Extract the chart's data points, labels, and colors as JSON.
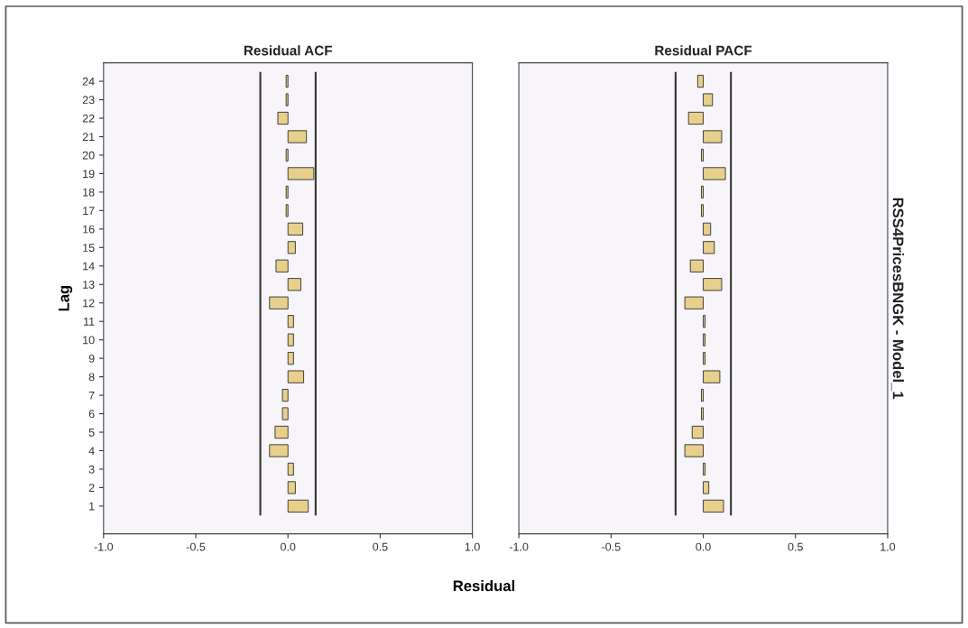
{
  "chart_data": [
    {
      "type": "bar",
      "orientation": "horizontal",
      "title": "Residual ACF",
      "xlabel": "Residual",
      "ylabel": "Lag",
      "categories": [
        "24",
        "23",
        "22",
        "21",
        "20",
        "19",
        "18",
        "17",
        "16",
        "15",
        "14",
        "13",
        "12",
        "11",
        "10",
        "9",
        "8",
        "7",
        "6",
        "5",
        "4",
        "3",
        "2",
        "1"
      ],
      "values": [
        -0.01,
        -0.01,
        -0.055,
        0.1,
        -0.01,
        0.14,
        -0.01,
        -0.01,
        0.08,
        0.04,
        -0.065,
        0.07,
        -0.1,
        0.03,
        0.03,
        0.03,
        0.085,
        -0.03,
        -0.03,
        -0.07,
        -0.1,
        0.03,
        0.04,
        0.11
      ],
      "color": "#e8d08c",
      "xlim": [
        -1.0,
        1.0
      ],
      "xticks": [
        {
          "value": -1.0,
          "label": "-1.0"
        },
        {
          "value": -0.5,
          "label": "-0.5"
        },
        {
          "value": 0.0,
          "label": "0.0"
        },
        {
          "value": 0.5,
          "label": "0.5"
        },
        {
          "value": 1.0,
          "label": "1.0"
        }
      ],
      "ref_lines": [
        {
          "axis": "x",
          "value": -0.15,
          "color": "#333333"
        },
        {
          "axis": "x",
          "value": 0.15,
          "color": "#333333"
        }
      ],
      "grid": false,
      "legend": false
    },
    {
      "type": "bar",
      "orientation": "horizontal",
      "title": "Residual PACF",
      "tick_labels": "x",
      "categories": [
        "24",
        "23",
        "22",
        "21",
        "20",
        "19",
        "18",
        "17",
        "16",
        "15",
        "14",
        "13",
        "12",
        "11",
        "10",
        "9",
        "8",
        "7",
        "6",
        "5",
        "4",
        "3",
        "2",
        "1"
      ],
      "values": [
        -0.03,
        0.05,
        -0.08,
        0.1,
        -0.01,
        0.12,
        -0.01,
        -0.01,
        0.04,
        0.06,
        -0.07,
        0.1,
        -0.1,
        0.01,
        0.01,
        0.01,
        0.09,
        -0.01,
        -0.01,
        -0.06,
        -0.1,
        0.01,
        0.03,
        0.11
      ],
      "color": "#e8d08c",
      "xlim": [
        -1.0,
        1.0
      ],
      "xticks": [
        {
          "value": -1.0,
          "label": "-1.0"
        },
        {
          "value": -0.5,
          "label": "-0.5"
        },
        {
          "value": 0.0,
          "label": "0.0"
        },
        {
          "value": 0.5,
          "label": "0.5"
        },
        {
          "value": 1.0,
          "label": "1.0"
        }
      ],
      "ref_lines": [
        {
          "axis": "x",
          "value": -0.15,
          "color": "#333333"
        },
        {
          "axis": "x",
          "value": 0.15,
          "color": "#333333"
        }
      ],
      "annotations": [
        "RSS4PricesBNGK - Model_1"
      ],
      "grid": false,
      "legend": false
    }
  ]
}
